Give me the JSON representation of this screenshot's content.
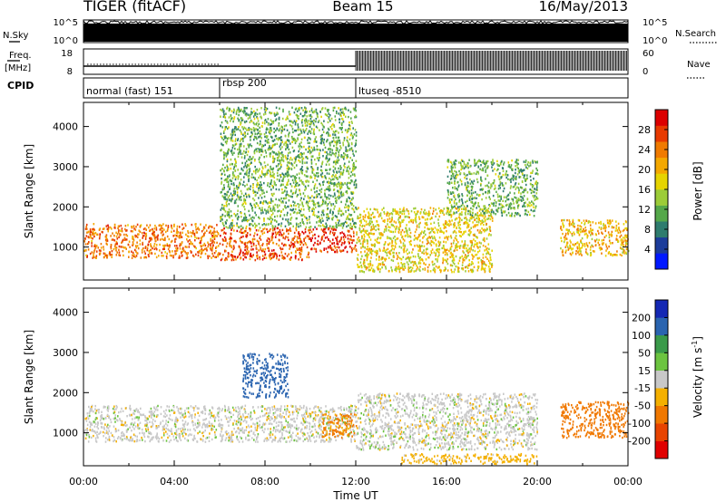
{
  "header": {
    "station": "TIGER (fitACF)",
    "beam": "Beam 15",
    "date": "16/May/2013"
  },
  "side_labels": {
    "nsky": "N.Sky",
    "freq_line1": "Freq.",
    "freq_line2": "[MHz]",
    "cpid": "CPID",
    "nsearch": "N.Search",
    "nave": "Nave"
  },
  "nsky_panel": {
    "left_ticks": [
      "10^5",
      "10^0"
    ],
    "right_ticks": [
      "10^5",
      "10^0"
    ]
  },
  "freq_panel": {
    "left_ticks": [
      "18",
      "8"
    ],
    "right_ticks": [
      "60",
      "0"
    ]
  },
  "cpid_segments": [
    {
      "label": "normal (fast) 151",
      "start_hour": 0,
      "end_hour": 6
    },
    {
      "label": "rbsp 200",
      "start_hour": 6,
      "end_hour": 12
    },
    {
      "label": "ltuseq -8510",
      "start_hour": 12,
      "end_hour": 24
    }
  ],
  "chart_data": [
    {
      "type": "heatmap",
      "quantity": "power",
      "xlabel": "Time UT",
      "ylabel": "Slant Range [km]",
      "xlim": [
        0,
        24
      ],
      "ylim": [
        180,
        4600
      ],
      "yticks": [
        1000,
        2000,
        3000,
        4000
      ],
      "colorbar": {
        "label": "Power [dB]",
        "range": [
          0,
          32
        ],
        "ticks": [
          4,
          8,
          12,
          16,
          20,
          24,
          28
        ],
        "colors": [
          "#0018ff",
          "#1c3c9a",
          "#2f7c6e",
          "#55a84a",
          "#9ccc38",
          "#e6d400",
          "#f4a800",
          "#f07a00",
          "#e83a00",
          "#dc0000"
        ]
      },
      "features": [
        {
          "hours": [
            0,
            6
          ],
          "range_km": [
            750,
            1600
          ],
          "value_db": 24
        },
        {
          "hours": [
            6,
            10
          ],
          "range_km": [
            700,
            1500
          ],
          "value_db": 26
        },
        {
          "hours": [
            10,
            12
          ],
          "range_km": [
            900,
            1500
          ],
          "value_db": 28
        },
        {
          "hours": [
            6,
            12
          ],
          "range_km": [
            1500,
            4500
          ],
          "value_db": 12
        },
        {
          "hours": [
            12,
            18
          ],
          "range_km": [
            400,
            2000
          ],
          "value_db": 18
        },
        {
          "hours": [
            16,
            20
          ],
          "range_km": [
            1800,
            3200
          ],
          "value_db": 12
        },
        {
          "hours": [
            21,
            24
          ],
          "range_km": [
            800,
            1700
          ],
          "value_db": 20
        }
      ]
    },
    {
      "type": "heatmap",
      "quantity": "velocity",
      "xlabel": "Time UT",
      "ylabel": "Slant Range [km]",
      "xlim": [
        0,
        24
      ],
      "ylim": [
        180,
        4600
      ],
      "yticks": [
        1000,
        2000,
        3000,
        4000
      ],
      "xticks": [
        "00:00",
        "04:00",
        "08:00",
        "12:00",
        "16:00",
        "20:00",
        "00:00"
      ],
      "colorbar": {
        "label": "Velocity [m s^-1]",
        "ticks": [
          "200",
          "100",
          "50",
          "15",
          "-15",
          "-50",
          "-100",
          "-200"
        ],
        "colors": [
          "#1428b4",
          "#2a64b0",
          "#3a9a4a",
          "#6cc440",
          "#c8c8c8",
          "#f4b000",
          "#f07800",
          "#e84400",
          "#e00000"
        ]
      },
      "features": [
        {
          "hours": [
            0,
            12
          ],
          "range_km": [
            800,
            1700
          ],
          "value_ms": 0
        },
        {
          "hours": [
            7,
            9
          ],
          "range_km": [
            1900,
            3000
          ],
          "value_ms": 150
        },
        {
          "hours": [
            10.5,
            12
          ],
          "range_km": [
            900,
            1500
          ],
          "value_ms": -60
        },
        {
          "hours": [
            12,
            20
          ],
          "range_km": [
            600,
            2000
          ],
          "value_ms": 0
        },
        {
          "hours": [
            21,
            24
          ],
          "range_km": [
            900,
            1800
          ],
          "value_ms": -70
        },
        {
          "hours": [
            14,
            20
          ],
          "range_km": [
            250,
            500
          ],
          "value_ms": -30
        }
      ]
    }
  ]
}
